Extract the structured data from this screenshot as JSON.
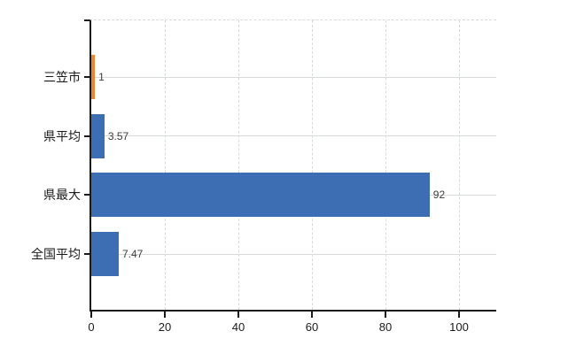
{
  "chart_data": {
    "type": "bar",
    "orientation": "horizontal",
    "title": "",
    "xlabel": "",
    "ylabel": "",
    "categories": [
      "三笠市",
      "県平均",
      "県最大",
      "全国平均"
    ],
    "values": [
      1,
      3.57,
      92,
      7.47
    ],
    "value_labels": [
      "1",
      "3.57",
      "92",
      "7.47"
    ],
    "bar_colors": [
      "#ee8430",
      "#3d6eb3",
      "#3d6eb3",
      "#3d6eb3"
    ],
    "xticks": [
      0,
      20,
      40,
      60,
      80,
      100
    ],
    "xlim": [
      0,
      110
    ],
    "grid": true,
    "legend": false
  },
  "colors": {
    "background": "#ffffff",
    "axis": "#1a1a1a",
    "gridline": "#d7dbd7",
    "category_label_color": "#1a1a1a",
    "tick_label_color": "#1a1a1a",
    "value_label_color": "#3c3c3c",
    "highlight_bar": "#ee8430",
    "default_bar": "#3d6eb3"
  }
}
